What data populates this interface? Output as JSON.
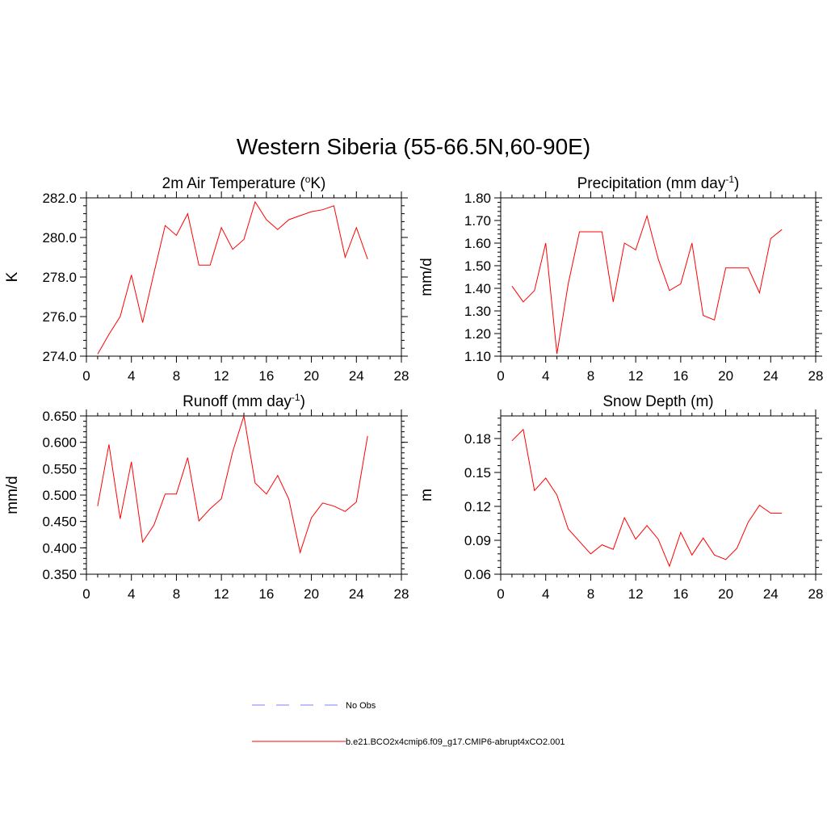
{
  "title": "Western Siberia (55-66.5N,60-90E)",
  "legend": {
    "items": [
      {
        "label": "No Obs",
        "color": "#9999ff",
        "dashed": true
      },
      {
        "label": "b.e21.BCO2x4cmip6.f09_g17.CMIP6-abrupt4xCO2.001",
        "color": "#ff0000",
        "dashed": false
      }
    ]
  },
  "chart_data": [
    {
      "type": "line",
      "title": "2m Air Temperature (",
      "title_sup": "o",
      "title_suffix": "K)",
      "ylabel": "K",
      "xlim": [
        0,
        28
      ],
      "ylim": [
        274.0,
        282.0
      ],
      "xticks": [
        0,
        4,
        8,
        12,
        16,
        20,
        24,
        28
      ],
      "yticks": [
        274.0,
        276.0,
        278.0,
        280.0,
        282.0
      ],
      "ytick_labels": [
        "274.0",
        "276.0",
        "278.0",
        "280.0",
        "282.0"
      ],
      "series": [
        {
          "color": "#ff0000",
          "x": [
            1,
            2,
            3,
            4,
            5,
            6,
            7,
            8,
            9,
            10,
            11,
            12,
            13,
            14,
            15,
            16,
            17,
            18,
            19,
            20,
            21,
            22,
            23,
            24,
            25
          ],
          "y": [
            274.1,
            275.1,
            276.0,
            278.1,
            275.7,
            278.2,
            280.6,
            280.1,
            281.2,
            278.6,
            278.6,
            280.5,
            279.4,
            279.9,
            281.8,
            280.9,
            280.4,
            280.9,
            281.1,
            281.3,
            281.4,
            281.6,
            279.0,
            280.5,
            278.9
          ]
        }
      ]
    },
    {
      "type": "line",
      "title": "Precipitation (mm day",
      "title_sup": "-1",
      "title_suffix": ")",
      "ylabel": "mm/d",
      "xlim": [
        0,
        28
      ],
      "ylim": [
        1.1,
        1.8
      ],
      "xticks": [
        0,
        4,
        8,
        12,
        16,
        20,
        24,
        28
      ],
      "yticks": [
        1.1,
        1.2,
        1.3,
        1.4,
        1.5,
        1.6,
        1.7,
        1.8
      ],
      "ytick_labels": [
        "1.10",
        "1.20",
        "1.30",
        "1.40",
        "1.50",
        "1.60",
        "1.70",
        "1.80"
      ],
      "series": [
        {
          "color": "#ff0000",
          "x": [
            1,
            2,
            3,
            4,
            5,
            6,
            7,
            8,
            9,
            10,
            11,
            12,
            13,
            14,
            15,
            16,
            17,
            18,
            19,
            20,
            21,
            22,
            23,
            24,
            25
          ],
          "y": [
            1.41,
            1.34,
            1.39,
            1.6,
            1.11,
            1.42,
            1.65,
            1.65,
            1.65,
            1.34,
            1.6,
            1.57,
            1.72,
            1.53,
            1.39,
            1.42,
            1.6,
            1.28,
            1.26,
            1.49,
            1.49,
            1.49,
            1.38,
            1.62,
            1.66
          ]
        }
      ]
    },
    {
      "type": "line",
      "title": "Runoff (mm day",
      "title_sup": "-1",
      "title_suffix": ")",
      "ylabel": "mm/d",
      "xlim": [
        0,
        28
      ],
      "ylim": [
        0.35,
        0.65
      ],
      "xticks": [
        0,
        4,
        8,
        12,
        16,
        20,
        24,
        28
      ],
      "yticks": [
        0.35,
        0.4,
        0.45,
        0.5,
        0.55,
        0.6,
        0.65
      ],
      "ytick_labels": [
        "0.350",
        "0.400",
        "0.450",
        "0.500",
        "0.550",
        "0.600",
        "0.650"
      ],
      "series": [
        {
          "color": "#ff0000",
          "x": [
            1,
            2,
            3,
            4,
            5,
            6,
            7,
            8,
            9,
            10,
            11,
            12,
            13,
            14,
            15,
            16,
            17,
            18,
            19,
            20,
            21,
            22,
            23,
            24,
            25
          ],
          "y": [
            0.479,
            0.596,
            0.455,
            0.563,
            0.411,
            0.443,
            0.502,
            0.502,
            0.571,
            0.451,
            0.474,
            0.493,
            0.582,
            0.65,
            0.523,
            0.502,
            0.537,
            0.492,
            0.391,
            0.457,
            0.485,
            0.479,
            0.469,
            0.487,
            0.612
          ]
        }
      ]
    },
    {
      "type": "line",
      "title": "Snow Depth (m)",
      "title_sup": "",
      "title_suffix": "",
      "ylabel": "m",
      "xlim": [
        0,
        28
      ],
      "ylim": [
        0.06,
        0.2
      ],
      "xticks": [
        0,
        4,
        8,
        12,
        16,
        20,
        24,
        28
      ],
      "yticks": [
        0.06,
        0.09,
        0.12,
        0.15,
        0.18
      ],
      "ytick_labels": [
        "0.06",
        "0.09",
        "0.12",
        "0.15",
        "0.18"
      ],
      "series": [
        {
          "color": "#ff0000",
          "x": [
            1,
            2,
            3,
            4,
            5,
            6,
            7,
            8,
            9,
            10,
            11,
            12,
            13,
            14,
            15,
            16,
            17,
            18,
            19,
            20,
            21,
            22,
            23,
            24,
            25
          ],
          "y": [
            0.178,
            0.188,
            0.134,
            0.145,
            0.13,
            0.1,
            0.089,
            0.078,
            0.086,
            0.082,
            0.11,
            0.091,
            0.103,
            0.091,
            0.067,
            0.097,
            0.077,
            0.092,
            0.077,
            0.073,
            0.083,
            0.106,
            0.121,
            0.114,
            0.114
          ]
        }
      ]
    }
  ]
}
